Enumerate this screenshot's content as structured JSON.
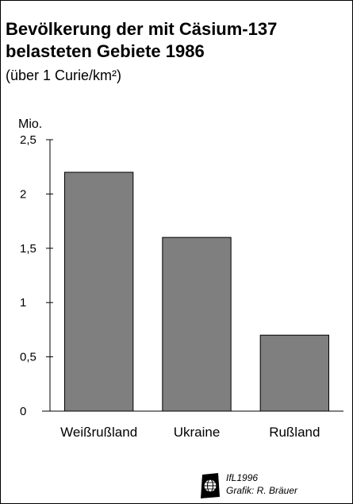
{
  "chart_data": {
    "type": "bar",
    "title": "Bevölkerung der mit  Cäsium-137 belasteten Gebiete 1986",
    "subtitle": "(über 1 Curie/km²)",
    "ylabel": "Mio.",
    "xlabel": "",
    "categories": [
      "Weißrußland",
      "Ukraine",
      "Rußland"
    ],
    "values": [
      2.2,
      1.6,
      0.7
    ],
    "yticks": [
      0,
      0.5,
      1,
      1.5,
      2,
      2.5
    ],
    "ytick_labels": [
      "0",
      "0,5",
      "1",
      "1,5",
      "2",
      "2,5"
    ],
    "ylim": [
      0,
      2.5
    ],
    "grid": false,
    "bar_color": "#7f7f7f"
  },
  "credit": {
    "line1": "IfL1996",
    "line2": "Grafik: R. Bräuer"
  },
  "logo_icon": "ifl-globe-logo-icon"
}
